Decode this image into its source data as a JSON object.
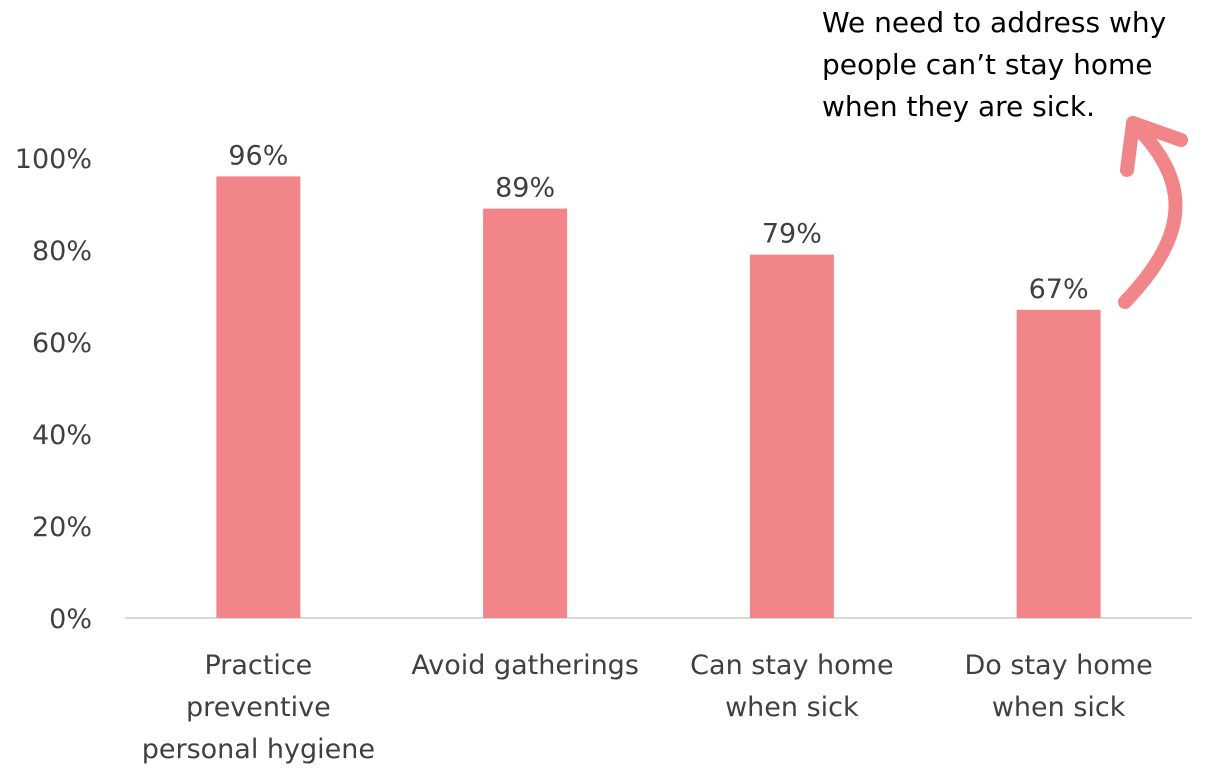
{
  "chart_data": {
    "type": "bar",
    "categories": [
      [
        "Practice",
        "preventive",
        "personal hygiene"
      ],
      [
        "Avoid gatherings"
      ],
      [
        "Can stay home",
        "when sick"
      ],
      [
        "Do stay home",
        "when sick"
      ]
    ],
    "values": [
      96,
      89,
      79,
      67
    ],
    "data_labels": [
      "96%",
      "89%",
      "79%",
      "67%"
    ],
    "ylim": [
      0,
      100
    ],
    "yticks": [
      0,
      20,
      40,
      60,
      80,
      100
    ],
    "ytick_labels": [
      "0%",
      "20%",
      "40%",
      "60%",
      "80%",
      "100%"
    ],
    "title": "",
    "xlabel": "",
    "ylabel": "",
    "grid": false,
    "legend": "none",
    "colors": {
      "bar": "#f2858a",
      "arrow": "#f2858a",
      "axis": "#d9d9d9",
      "text": "#404040"
    },
    "annotation": {
      "text": "We need to address why\npeople can’t stay home\nwhen they are sick."
    }
  }
}
